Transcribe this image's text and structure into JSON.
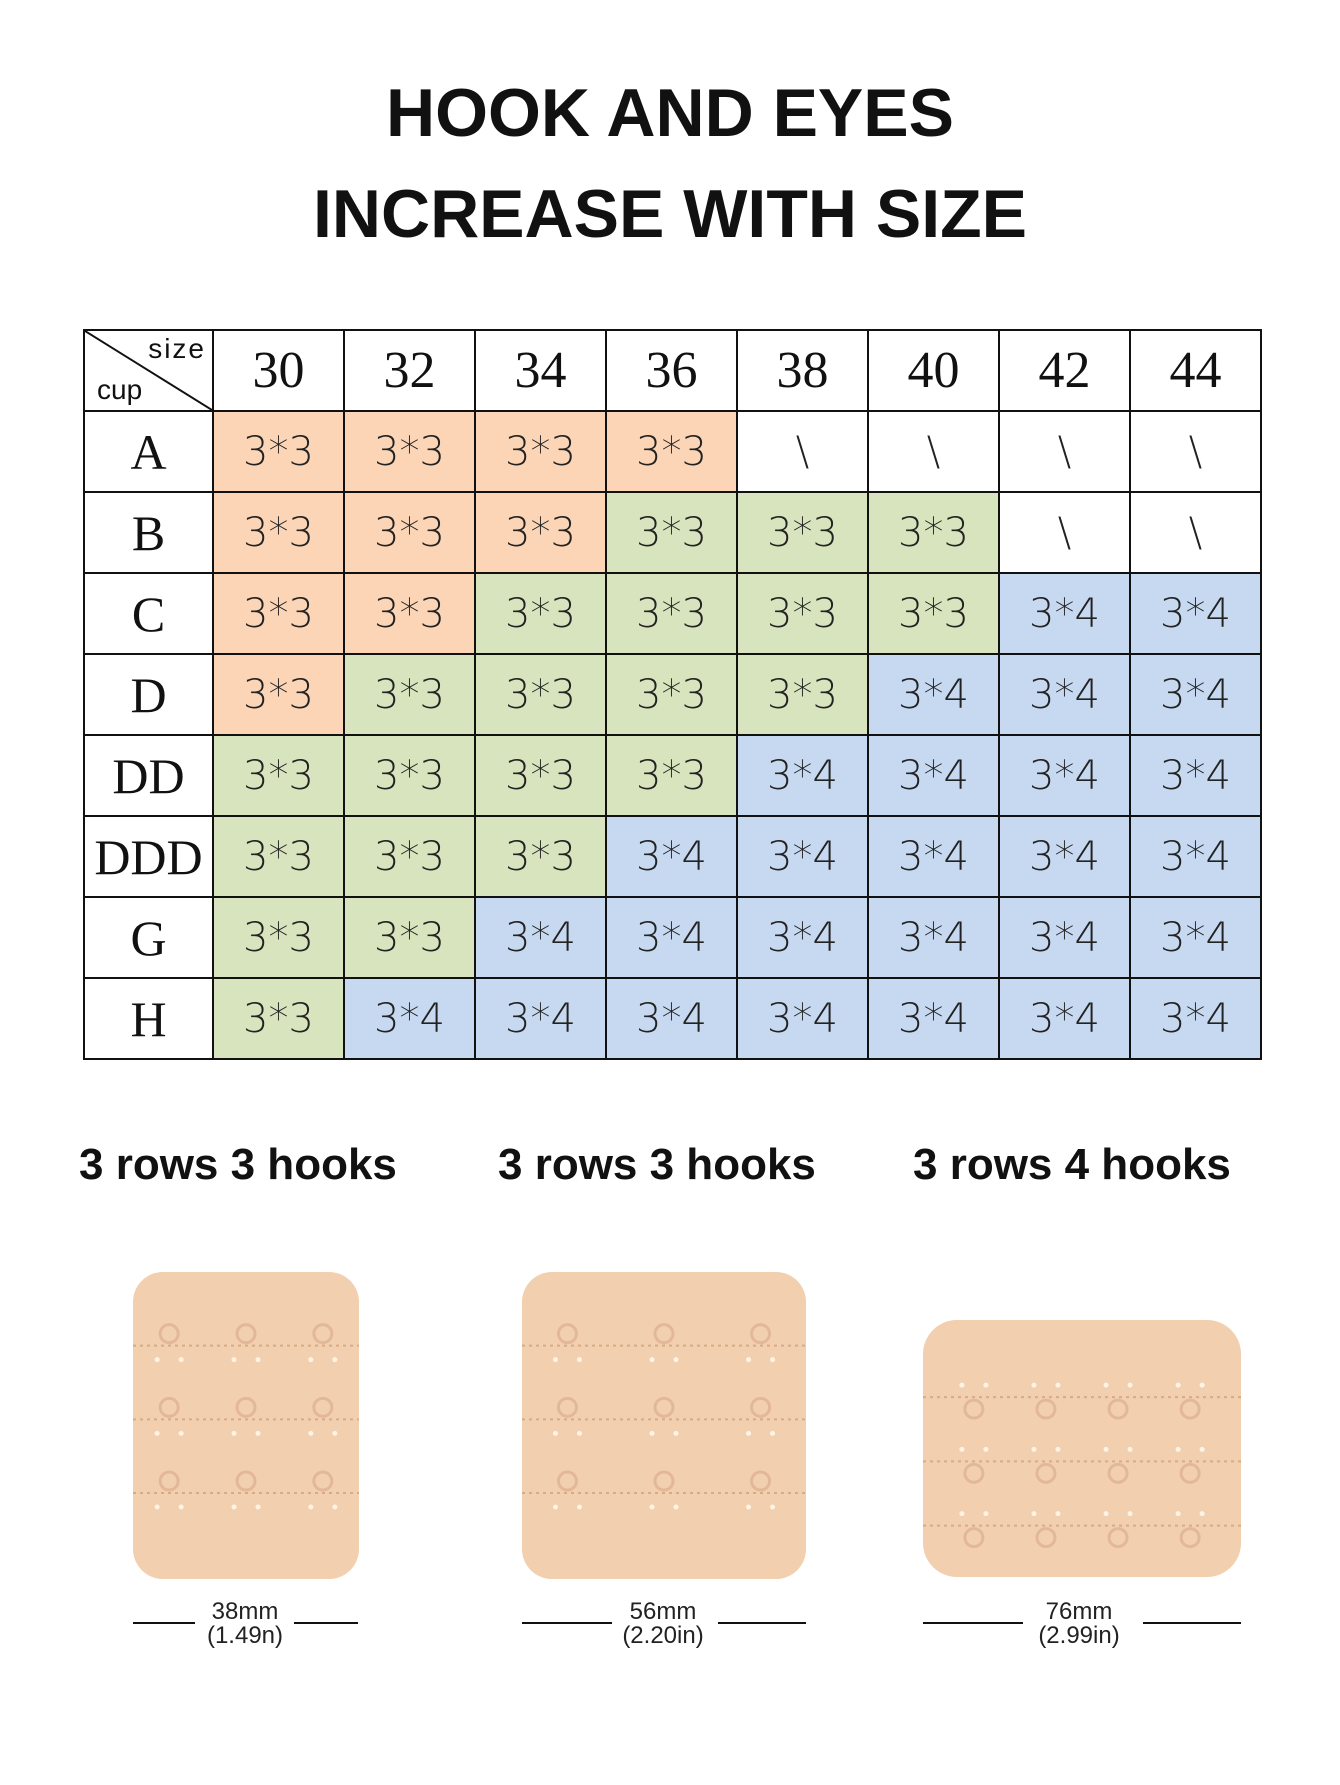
{
  "title": {
    "line1": "HOOK AND EYES",
    "line2": "INCREASE WITH SIZE"
  },
  "table": {
    "corner": {
      "top_label": "size",
      "bottom_label": "cup"
    },
    "sizes": [
      "30",
      "32",
      "34",
      "36",
      "38",
      "40",
      "42",
      "44"
    ],
    "rows": [
      {
        "cup": "A",
        "values": [
          "3*3",
          "3*3",
          "3*3",
          "3*3",
          "\\",
          "\\",
          "\\",
          "\\"
        ]
      },
      {
        "cup": "B",
        "values": [
          "3*3",
          "3*3",
          "3*3",
          "3*3",
          "3*3",
          "3*3",
          "\\",
          "\\"
        ]
      },
      {
        "cup": "C",
        "values": [
          "3*3",
          "3*3",
          "3*3",
          "3*3",
          "3*3",
          "3*3",
          "3*4",
          "3*4"
        ]
      },
      {
        "cup": "D",
        "values": [
          "3*3",
          "3*3",
          "3*3",
          "3*3",
          "3*3",
          "3*4",
          "3*4",
          "3*4"
        ]
      },
      {
        "cup": "DD",
        "values": [
          "3*3",
          "3*3",
          "3*3",
          "3*3",
          "3*4",
          "3*4",
          "3*4",
          "3*4"
        ]
      },
      {
        "cup": "DDD",
        "values": [
          "3*3",
          "3*3",
          "3*3",
          "3*4",
          "3*4",
          "3*4",
          "3*4",
          "3*4"
        ]
      },
      {
        "cup": "G",
        "values": [
          "3*3",
          "3*3",
          "3*4",
          "3*4",
          "3*4",
          "3*4",
          "3*4",
          "3*4"
        ]
      },
      {
        "cup": "H",
        "values": [
          "3*3",
          "3*4",
          "3*4",
          "3*4",
          "3*4",
          "3*4",
          "3*4",
          "3*4"
        ]
      }
    ],
    "cell_groups": [
      "oooo....",
      "oooggg..",
      "oogggg bb",
      "ogggg bbb",
      "gggg bbbb",
      "ggg bbbbb",
      "gg bbbbbb",
      "g bbbbbbb"
    ],
    "colors": {
      "orange": "#fbd5b6",
      "green": "#d8e4bd",
      "blue": "#c6d9f1",
      "empty": "#ffffff"
    }
  },
  "extenders": [
    {
      "caption": "3 rows 3 hooks",
      "width_mm": "38mm",
      "width_in": "(1.49n)",
      "hooks": 3
    },
    {
      "caption": "3 rows 3 hooks",
      "width_mm": "56mm",
      "width_in": "(2.20in)",
      "hooks": 3
    },
    {
      "caption": "3 rows 4 hooks",
      "width_mm": "76mm",
      "width_in": "(2.99in)",
      "hooks": 4
    }
  ],
  "fabric_color": "#f2cfae"
}
